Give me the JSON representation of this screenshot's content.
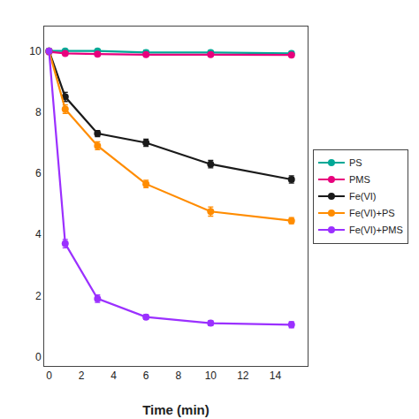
{
  "chart_data": {
    "type": "line",
    "xlabel": "Time (min)",
    "xlim": [
      -0.3,
      16.0
    ],
    "ylim": [
      -0.3,
      10.8
    ],
    "xticks": [
      0,
      2,
      4,
      6,
      8,
      10,
      12,
      14
    ],
    "yticks": [
      0,
      2,
      4,
      6,
      8,
      10
    ],
    "grid": false,
    "legend": "right",
    "marker": "circle",
    "line_style": "solid",
    "series": [
      {
        "name": "PS",
        "color": "#00A896",
        "x": [
          0,
          1,
          3,
          6,
          10,
          15
        ],
        "values": [
          10.0,
          10.0,
          10.0,
          9.95,
          9.95,
          9.92
        ],
        "yerr": [
          0.05,
          0.05,
          0.05,
          0.08,
          0.06,
          0.06
        ]
      },
      {
        "name": "PMS",
        "color": "#E8007D",
        "x": [
          0,
          1,
          3,
          6,
          10,
          15
        ],
        "values": [
          9.97,
          9.92,
          9.9,
          9.88,
          9.88,
          9.87
        ],
        "yerr": [
          0.04,
          0.04,
          0.04,
          0.05,
          0.04,
          0.04
        ]
      },
      {
        "name": "Fe(VI)",
        "color": "#1a1a1a",
        "x": [
          0,
          1,
          3,
          6,
          10,
          15
        ],
        "values": [
          10.0,
          8.5,
          7.3,
          7.0,
          6.3,
          5.8
        ],
        "yerr": [
          0.05,
          0.15,
          0.1,
          0.12,
          0.12,
          0.12
        ]
      },
      {
        "name": "Fe(VI)+PS",
        "color": "#FF8C00",
        "x": [
          0,
          1,
          3,
          6,
          10,
          15
        ],
        "values": [
          10.0,
          8.1,
          6.9,
          5.65,
          4.75,
          4.45
        ],
        "yerr": [
          0.05,
          0.14,
          0.13,
          0.12,
          0.15,
          0.1
        ]
      },
      {
        "name": "Fe(VI)+PMS",
        "color": "#9B30FF",
        "x": [
          0,
          1,
          3,
          6,
          10,
          15
        ],
        "values": [
          10.0,
          3.7,
          1.9,
          1.3,
          1.1,
          1.05
        ],
        "yerr": [
          0.05,
          0.14,
          0.12,
          0.08,
          0.08,
          0.1
        ]
      }
    ]
  }
}
